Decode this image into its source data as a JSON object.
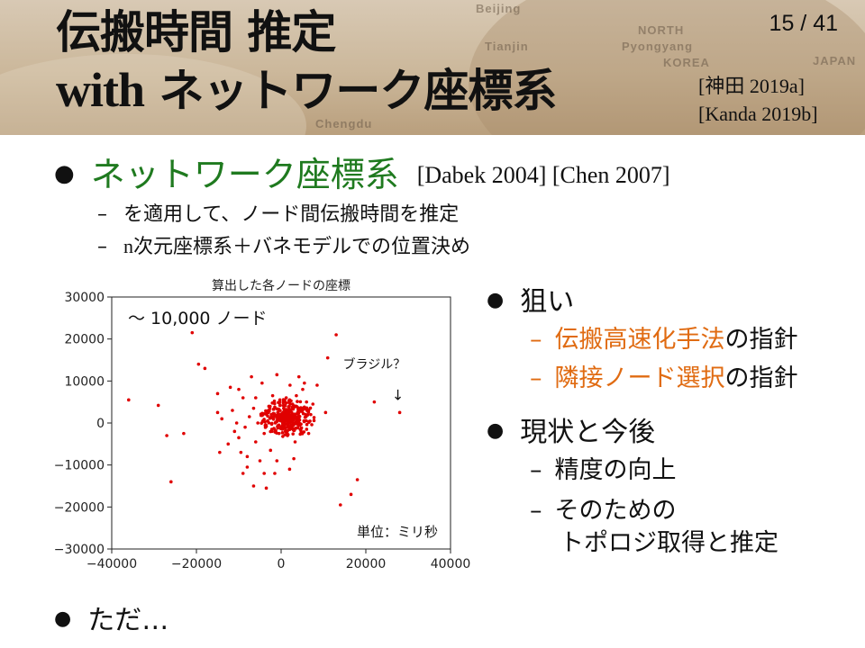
{
  "header": {
    "title_line1": "伝搬時間 推定",
    "title_line2_en": "with",
    "title_line2_jp": "ネットワーク座標系",
    "page_number": "15 / 41",
    "refs": [
      "[神田 2019a]",
      "[Kanda 2019b]"
    ],
    "map_labels": [
      "Beijing",
      "NORTH",
      "Pyongyang",
      "KOREA",
      "Tianjin",
      "JAPAN",
      "Chengdu"
    ]
  },
  "main_bullet": {
    "text": "ネットワーク座標系",
    "citations": "[Dabek 2004] [Chen 2007]",
    "color": "#1f7a1f"
  },
  "sub_items": [
    {
      "dash": "–",
      "text": "を適用して、ノード間伝搬時間を推定"
    },
    {
      "dash": "–",
      "text_en": "n",
      "text": "次元座標系＋バネモデルでの位置決め"
    }
  ],
  "chart_data": {
    "type": "scatter",
    "title": "算出した各ノードの座標",
    "annotation_count": "〜 10,000 ノード",
    "annotation_brazil": "ブラジル？",
    "annotation_arrow": "↓",
    "annotation_unit": "単位：ミリ秒",
    "xlim": [
      -40000,
      40000
    ],
    "ylim": [
      -30000,
      30000
    ],
    "x_ticks": [
      -40000,
      -20000,
      0,
      20000,
      40000
    ],
    "x_tick_labels": [
      "−40000",
      "−20000",
      "0",
      "20000",
      "40000"
    ],
    "y_ticks": [
      30000,
      20000,
      10000,
      0,
      -10000,
      -20000,
      -30000
    ],
    "y_tick_labels": [
      "30000",
      "20000",
      "10000",
      "0",
      "−10000",
      "−20000",
      "−30000"
    ],
    "marker_color": "#e00000",
    "points": [
      [
        -36000,
        5500
      ],
      [
        -29000,
        4200
      ],
      [
        -27000,
        -3000
      ],
      [
        -26000,
        -14000
      ],
      [
        -21000,
        21500
      ],
      [
        -19500,
        14000
      ],
      [
        -18000,
        13000
      ],
      [
        -23000,
        -2500
      ],
      [
        -15000,
        7000
      ],
      [
        -15000,
        2500
      ],
      [
        -14500,
        -7000
      ],
      [
        -14000,
        1000
      ],
      [
        -12500,
        -5000
      ],
      [
        -11500,
        3000
      ],
      [
        -10000,
        -3500
      ],
      [
        -9500,
        -7000
      ],
      [
        -9000,
        -12000
      ],
      [
        -8000,
        -10500
      ],
      [
        -7000,
        11000
      ],
      [
        -6500,
        -15000
      ],
      [
        -6000,
        6000
      ],
      [
        -5000,
        -9000
      ],
      [
        -4500,
        9500
      ],
      [
        -4000,
        -2500
      ],
      [
        -3500,
        -15500
      ],
      [
        -3000,
        3000
      ],
      [
        -2500,
        -6500
      ],
      [
        -2000,
        6500
      ],
      [
        -1500,
        -12000
      ],
      [
        -1000,
        11500
      ],
      [
        -800,
        2500
      ],
      [
        -500,
        -500
      ],
      [
        0,
        1500
      ],
      [
        300,
        -1500
      ],
      [
        600,
        3500
      ],
      [
        900,
        500
      ],
      [
        1200,
        6000
      ],
      [
        1500,
        -3000
      ],
      [
        1800,
        2000
      ],
      [
        2100,
        9000
      ],
      [
        2400,
        -500
      ],
      [
        2700,
        4500
      ],
      [
        3000,
        1000
      ],
      [
        3300,
        -4500
      ],
      [
        3600,
        6500
      ],
      [
        3900,
        2500
      ],
      [
        4200,
        11000
      ],
      [
        4500,
        -1500
      ],
      [
        4800,
        3500
      ],
      [
        5100,
        8000
      ],
      [
        5400,
        500
      ],
      [
        6000,
        5000
      ],
      [
        6500,
        -2500
      ],
      [
        7000,
        2000
      ],
      [
        -7500,
        1500
      ],
      [
        -8500,
        -1000
      ],
      [
        -10500,
        0
      ],
      [
        -11000,
        -2000
      ],
      [
        -6500,
        3500
      ],
      [
        -5500,
        0
      ],
      [
        -4500,
        1800
      ],
      [
        -3500,
        -800
      ],
      [
        -2500,
        1200
      ],
      [
        -1500,
        3800
      ],
      [
        -500,
        -2500
      ],
      [
        500,
        4800
      ],
      [
        1000,
        -2000
      ],
      [
        1500,
        1500
      ],
      [
        2000,
        5500
      ],
      [
        2500,
        2500
      ],
      [
        3000,
        -1800
      ],
      [
        3500,
        4000
      ],
      [
        4000,
        800
      ],
      [
        -2800,
        2800
      ],
      [
        -1800,
        900
      ],
      [
        -800,
        -1200
      ],
      [
        200,
        2200
      ],
      [
        700,
        200
      ],
      [
        1200,
        3200
      ],
      [
        1700,
        -800
      ],
      [
        2200,
        1700
      ],
      [
        -3200,
        500
      ],
      [
        -2200,
        -1500
      ],
      [
        -1200,
        1800
      ],
      [
        -200,
        4200
      ],
      [
        800,
        1200
      ],
      [
        1800,
        3000
      ],
      [
        2800,
        600
      ],
      [
        -1600,
        5200
      ],
      [
        400,
        -3200
      ],
      [
        -9000,
        6000
      ],
      [
        -12000,
        8500
      ],
      [
        5500,
        9500
      ],
      [
        8500,
        9000
      ],
      [
        10500,
        2500
      ],
      [
        13000,
        21000
      ],
      [
        11000,
        15500
      ],
      [
        -8000,
        -8000
      ],
      [
        -4000,
        -12000
      ],
      [
        2000,
        -11000
      ],
      [
        -1000,
        -9000
      ],
      [
        3000,
        -8500
      ],
      [
        18000,
        -13500
      ],
      [
        16500,
        -17000
      ],
      [
        14000,
        -19500
      ],
      [
        22000,
        5000
      ],
      [
        28000,
        2500
      ],
      [
        -10000,
        8000
      ],
      [
        -6000,
        -4500
      ],
      [
        7500,
        4500
      ]
    ]
  },
  "right_bullets": [
    {
      "text": "狙い",
      "subs": [
        {
          "highlight": "伝搬高速化手法",
          "rest": "の指針"
        },
        {
          "highlight": "隣接ノード選択",
          "rest": "の指針"
        }
      ]
    },
    {
      "text": "現状と今後",
      "subs": [
        {
          "highlight": "",
          "rest": "精度の向上"
        },
        {
          "highlight": "",
          "rest": "そのための",
          "rest2": "トポロジ取得と推定"
        }
      ]
    }
  ],
  "bottom_bullet": "ただ…",
  "highlight_color": "#e06b12"
}
